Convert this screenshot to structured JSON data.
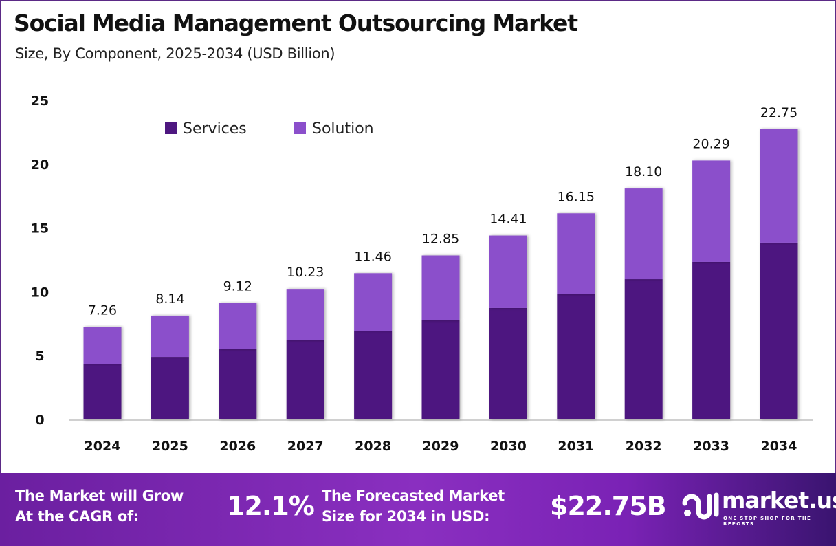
{
  "title": "Social Media Management Outsourcing Market",
  "subtitle": "Size, By Component, 2025-2034 (USD Billion)",
  "colors": {
    "services": "#4e1780",
    "solution": "#8b4fcb",
    "footer": "#7a22b5"
  },
  "chart_data": {
    "type": "bar",
    "stacked": true,
    "categories": [
      "2024",
      "2025",
      "2026",
      "2027",
      "2028",
      "2029",
      "2030",
      "2031",
      "2032",
      "2033",
      "2034"
    ],
    "series": [
      {
        "name": "Services",
        "values": [
          4.36,
          4.9,
          5.5,
          6.2,
          6.95,
          7.76,
          8.73,
          9.81,
          10.99,
          12.34,
          13.85
        ]
      },
      {
        "name": "Solution",
        "values": [
          2.9,
          3.24,
          3.62,
          4.03,
          4.51,
          5.09,
          5.68,
          6.34,
          7.11,
          7.95,
          8.9
        ]
      }
    ],
    "totals": [
      "7.26",
      "8.14",
      "9.12",
      "10.23",
      "11.46",
      "12.85",
      "14.41",
      "16.15",
      "18.10",
      "20.29",
      "22.75"
    ],
    "ylim": [
      0,
      25
    ],
    "yticks": [
      "0",
      "5",
      "10",
      "15",
      "20",
      "25"
    ],
    "legend": "top-left",
    "grid": false
  },
  "footer": {
    "cagr_label_1": "The Market will Grow",
    "cagr_label_2": "At the CAGR of:",
    "cagr_value": "12.1%",
    "forecast_label_1": "The Forecasted Market",
    "forecast_label_2": "Size for 2034 in USD:",
    "forecast_value": "$22.75B",
    "logo_name": "market.us",
    "logo_tagline": "ONE STOP SHOP FOR THE REPORTS"
  }
}
